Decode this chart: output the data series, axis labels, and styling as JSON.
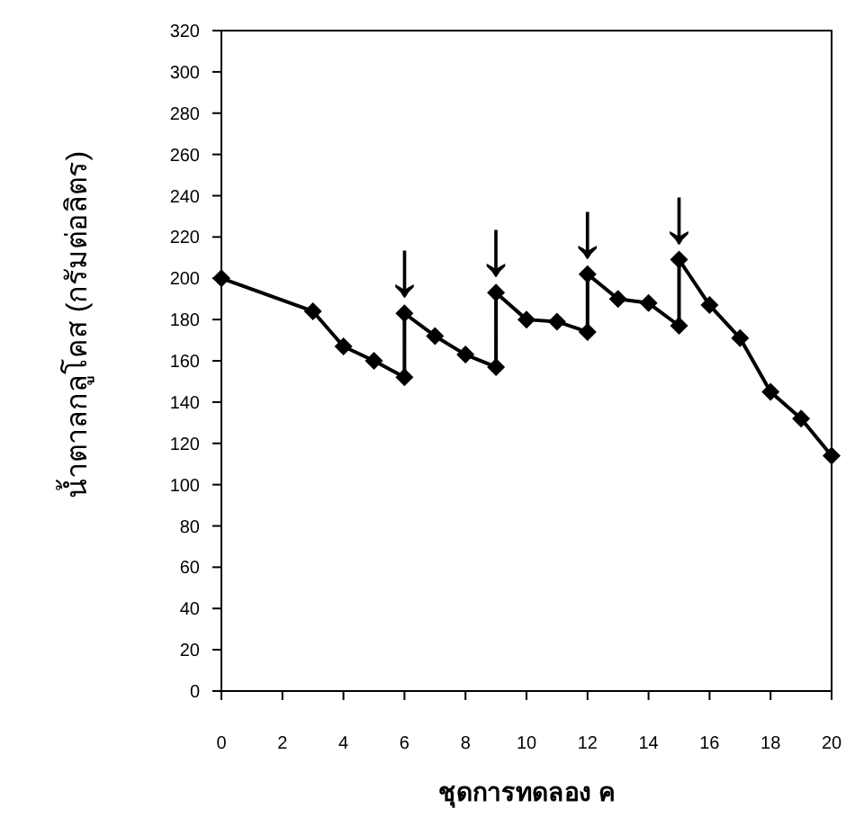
{
  "chart_data": {
    "type": "line",
    "xlabel": "ชุดการทดลอง ค",
    "ylabel": "น้ำตาลกลูโคส (กรัมต่อลิตร)",
    "series": [
      {
        "color": "#000000",
        "x": [
          0,
          3,
          4,
          5,
          6,
          6,
          7,
          8,
          9,
          9,
          10,
          11,
          12,
          12,
          13,
          14,
          15,
          15,
          16,
          17,
          18,
          19,
          20
        ],
        "values": [
          200,
          184,
          167,
          160,
          152,
          183,
          172,
          163,
          157,
          193,
          180,
          179,
          174,
          202,
          190,
          188,
          177,
          209,
          187,
          171,
          145,
          132,
          114
        ]
      }
    ],
    "xlim": [
      0,
      20
    ],
    "xticks": [
      0,
      2,
      4,
      6,
      8,
      10,
      12,
      14,
      16,
      18,
      20
    ],
    "ylim": [
      0,
      320
    ],
    "yticks": [
      0,
      20,
      40,
      60,
      80,
      100,
      120,
      140,
      160,
      180,
      200,
      220,
      240,
      260,
      280,
      300,
      320
    ],
    "annotations": [
      {
        "text": "↓",
        "x": 6,
        "y": 183
      },
      {
        "text": "↓",
        "x": 9,
        "y": 193
      },
      {
        "text": "↓",
        "x": 12,
        "y": 202
      },
      {
        "text": "↓",
        "x": 15,
        "y": 209
      }
    ],
    "marker": "diamond",
    "line_style": "solid"
  }
}
